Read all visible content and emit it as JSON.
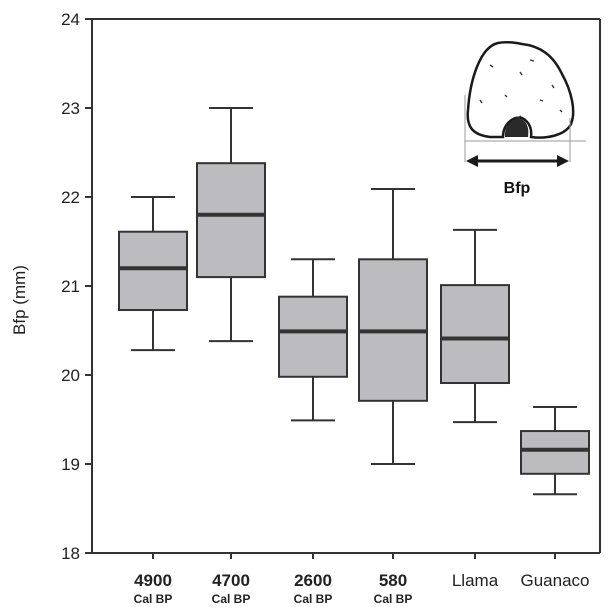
{
  "chart_data": {
    "type": "box",
    "ylabel": "Bfp (mm)",
    "ylim": [
      18,
      24
    ],
    "yticks": [
      "18",
      "19",
      "20",
      "21",
      "22",
      "23",
      "24"
    ],
    "categories": [
      {
        "label": "4900",
        "sublabel": "Cal BP",
        "bold": true
      },
      {
        "label": "4700",
        "sublabel": "Cal BP",
        "bold": true
      },
      {
        "label": "2600",
        "sublabel": "Cal BP",
        "bold": true
      },
      {
        "label": "580",
        "sublabel": "Cal BP",
        "bold": true
      },
      {
        "label": "Llama",
        "sublabel": "",
        "bold": false
      },
      {
        "label": "Guanaco",
        "sublabel": "",
        "bold": false
      }
    ],
    "boxes": [
      {
        "min": 20.28,
        "q1": 20.73,
        "median": 21.2,
        "q3": 21.61,
        "max": 22.0
      },
      {
        "min": 20.38,
        "q1": 21.1,
        "median": 21.8,
        "q3": 22.38,
        "max": 23.0
      },
      {
        "min": 19.49,
        "q1": 19.98,
        "median": 20.49,
        "q3": 20.88,
        "max": 21.3
      },
      {
        "min": 19.0,
        "q1": 19.71,
        "median": 20.49,
        "q3": 21.3,
        "max": 22.09
      },
      {
        "min": 19.47,
        "q1": 19.91,
        "median": 20.41,
        "q3": 21.01,
        "max": 21.63
      },
      {
        "min": 18.66,
        "q1": 18.89,
        "median": 19.16,
        "q3": 19.37,
        "max": 19.64
      }
    ],
    "grid": false,
    "colors": {
      "box_fill": "#bcbcc0",
      "stroke": "#333333",
      "median": "#333333"
    },
    "inset": {
      "label": "Bfp"
    }
  }
}
